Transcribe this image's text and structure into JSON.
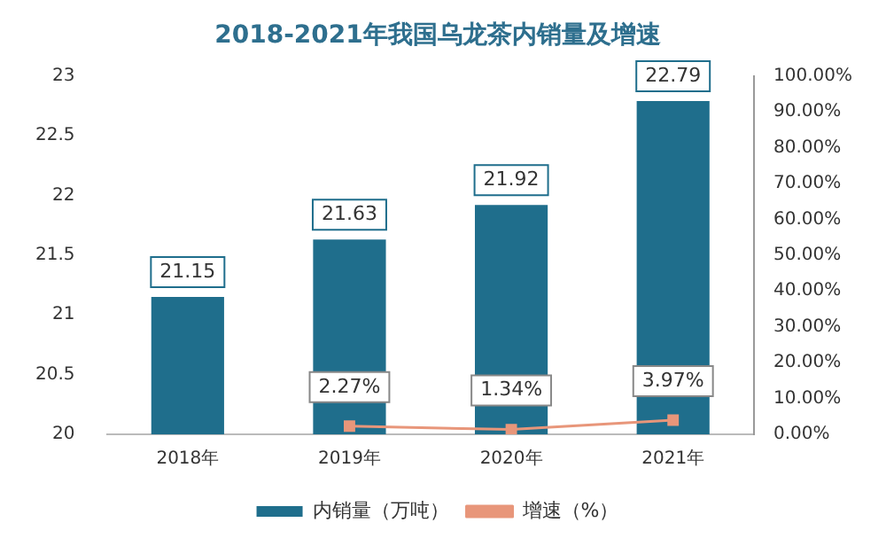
{
  "chart_data": {
    "type": "bar",
    "title": "2018-2021年我国乌龙茶内销量及增速",
    "categories": [
      "2018年",
      "2019年",
      "2020年",
      "2021年"
    ],
    "series": [
      {
        "name": "内销量（万吨）",
        "color": "#1f6e8c",
        "values": [
          21.15,
          21.63,
          21.92,
          22.79
        ],
        "value_labels": [
          "21.15",
          "21.63",
          "21.92",
          "22.79"
        ]
      },
      {
        "name": "增速（%）",
        "type": "line",
        "axis": "y2",
        "color": "#e8967a",
        "marker": "square",
        "values": [
          null,
          2.27,
          1.34,
          3.97
        ],
        "value_labels": [
          null,
          "2.27%",
          "1.34%",
          "3.97%"
        ]
      }
    ],
    "ylim": [
      20,
      23
    ],
    "yticks": [
      20,
      20.5,
      21,
      21.5,
      22,
      22.5,
      23
    ],
    "y2lim": [
      0,
      100
    ],
    "y2ticks": [
      {
        "value": 0,
        "label": "0.00%"
      },
      {
        "value": 10,
        "label": "10.00%"
      },
      {
        "value": 20,
        "label": "20.00%"
      },
      {
        "value": 30,
        "label": "30.00%"
      },
      {
        "value": 40,
        "label": "40.00%"
      },
      {
        "value": 50,
        "label": "50.00%"
      },
      {
        "value": 60,
        "label": "60.00%"
      },
      {
        "value": 70,
        "label": "70.00%"
      },
      {
        "value": 80,
        "label": "80.00%"
      },
      {
        "value": 90,
        "label": "90.00%"
      },
      {
        "value": 100,
        "label": "100.00%"
      }
    ],
    "grid": false,
    "legend": "bottom"
  }
}
